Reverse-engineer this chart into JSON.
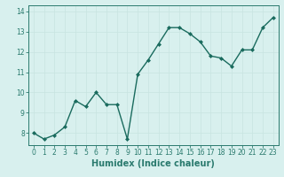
{
  "x": [
    0,
    1,
    2,
    3,
    4,
    5,
    6,
    7,
    8,
    9,
    10,
    11,
    12,
    13,
    14,
    15,
    16,
    17,
    18,
    19,
    20,
    21,
    22,
    23
  ],
  "y": [
    8.0,
    7.7,
    7.9,
    8.3,
    9.6,
    9.3,
    10.0,
    9.4,
    9.4,
    7.7,
    10.9,
    11.6,
    12.4,
    13.2,
    13.2,
    12.9,
    12.5,
    11.8,
    11.7,
    11.3,
    12.1,
    12.1,
    13.2,
    13.7
  ],
  "line_color": "#1a6b5e",
  "marker": "D",
  "markersize": 2.0,
  "linewidth": 1.0,
  "bg_color": "#d8f0ee",
  "grid_color": "#c8e4e0",
  "xlabel": "Humidex (Indice chaleur)",
  "xlabel_fontsize": 7,
  "xlabel_bold": true,
  "yticks": [
    8,
    9,
    10,
    11,
    12,
    13,
    14
  ],
  "xticks": [
    0,
    1,
    2,
    3,
    4,
    5,
    6,
    7,
    8,
    9,
    10,
    11,
    12,
    13,
    14,
    15,
    16,
    17,
    18,
    19,
    20,
    21,
    22,
    23
  ],
  "ylim": [
    7.4,
    14.3
  ],
  "xlim": [
    -0.5,
    23.5
  ],
  "tick_fontsize": 5.5,
  "spine_color": "#2a7a6e"
}
